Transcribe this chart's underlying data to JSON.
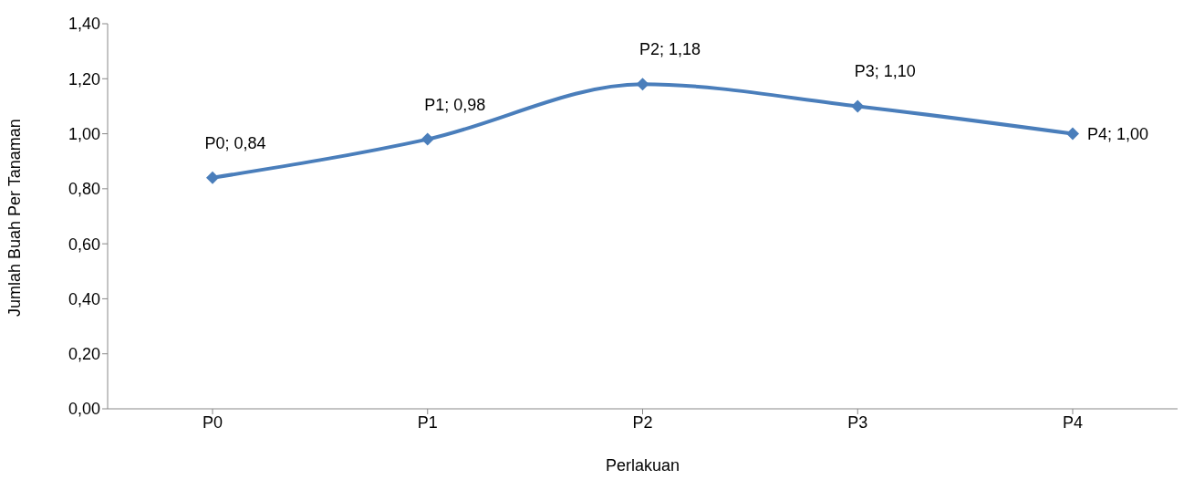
{
  "chart_data": {
    "type": "line",
    "xlabel": "Perlakuan",
    "ylabel": "Jumlah Buah Per Tanaman",
    "categories": [
      "P0",
      "P1",
      "P2",
      "P3",
      "P4"
    ],
    "series": [
      {
        "color": "#4a7ebb",
        "values": [
          0.84,
          0.98,
          1.18,
          1.1,
          1.0
        ],
        "value_labels": [
          "P0; 0,84",
          "P1; 0,98",
          "P2; 1,18",
          "P3; 1,10",
          "P4; 1,00"
        ]
      }
    ],
    "ylim": [
      0,
      1.4
    ],
    "yticks": [
      {
        "value": 0,
        "label": "0,00"
      },
      {
        "value": 0.2,
        "label": "0,20"
      },
      {
        "value": 0.4,
        "label": "0,40"
      },
      {
        "value": 0.6,
        "label": "0,60"
      },
      {
        "value": 0.8,
        "label": "0,80"
      },
      {
        "value": 1.0,
        "label": "1,00"
      },
      {
        "value": 1.2,
        "label": "1,20"
      },
      {
        "value": 1.4,
        "label": "1,40"
      }
    ],
    "grid": false,
    "legend": false,
    "marker": "diamond",
    "line_style": "solid"
  }
}
